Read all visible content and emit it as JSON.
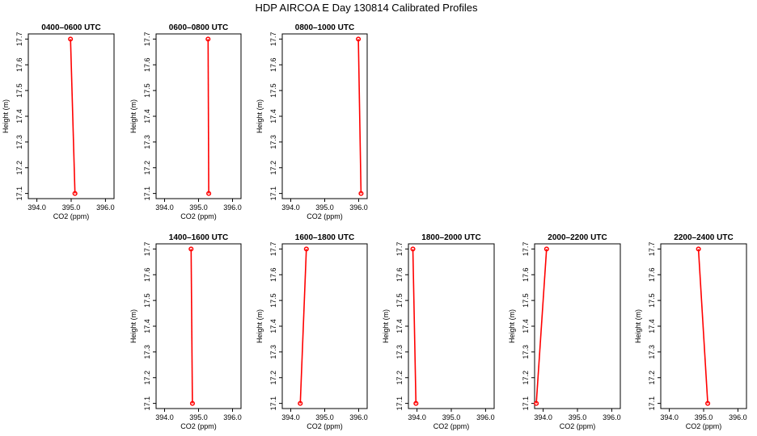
{
  "title": "HDP AIRCOA E  Day 130814  Calibrated Profiles",
  "chart_data": [
    {
      "type": "line",
      "title": "0400–0600 UTC",
      "xlabel": "CO2 (ppm)",
      "ylabel": "Height (m)",
      "xlim": [
        393.75,
        396.25
      ],
      "ylim": [
        17.08,
        17.72
      ],
      "xticks": [
        "394.0",
        "395.0",
        "396.0"
      ],
      "yticks": [
        "17.1",
        "17.2",
        "17.3",
        "17.4",
        "17.5",
        "17.6",
        "17.7"
      ],
      "x": [
        395.11,
        394.98
      ],
      "y": [
        17.1,
        17.7
      ]
    },
    {
      "type": "line",
      "title": "0600–0800 UTC",
      "xlabel": "CO2 (ppm)",
      "ylabel": "Height (m)",
      "xlim": [
        393.75,
        396.25
      ],
      "ylim": [
        17.08,
        17.72
      ],
      "xticks": [
        "394.0",
        "395.0",
        "396.0"
      ],
      "yticks": [
        "17.1",
        "17.2",
        "17.3",
        "17.4",
        "17.5",
        "17.6",
        "17.7"
      ],
      "x": [
        395.3,
        395.28
      ],
      "y": [
        17.1,
        17.7
      ]
    },
    {
      "type": "line",
      "title": "0800–1000 UTC",
      "xlabel": "CO2 (ppm)",
      "ylabel": "Height (m)",
      "xlim": [
        393.75,
        396.25
      ],
      "ylim": [
        17.08,
        17.72
      ],
      "xticks": [
        "394.0",
        "395.0",
        "396.0"
      ],
      "yticks": [
        "17.1",
        "17.2",
        "17.3",
        "17.4",
        "17.5",
        "17.6",
        "17.7"
      ],
      "x": [
        396.07,
        395.99
      ],
      "y": [
        17.1,
        17.7
      ]
    },
    {
      "type": "line",
      "title": "1400–1600 UTC",
      "xlabel": "CO2 (ppm)",
      "ylabel": "Height (m)",
      "xlim": [
        393.75,
        396.25
      ],
      "ylim": [
        17.08,
        17.72
      ],
      "xticks": [
        "394.0",
        "395.0",
        "396.0"
      ],
      "yticks": [
        "17.1",
        "17.2",
        "17.3",
        "17.4",
        "17.5",
        "17.6",
        "17.7"
      ],
      "x": [
        394.82,
        394.78
      ],
      "y": [
        17.1,
        17.7
      ]
    },
    {
      "type": "line",
      "title": "1600–1800 UTC",
      "xlabel": "CO2 (ppm)",
      "ylabel": "Height (m)",
      "xlim": [
        393.75,
        396.25
      ],
      "ylim": [
        17.08,
        17.72
      ],
      "xticks": [
        "394.0",
        "395.0",
        "396.0"
      ],
      "yticks": [
        "17.1",
        "17.2",
        "17.3",
        "17.4",
        "17.5",
        "17.6",
        "17.7"
      ],
      "x": [
        394.28,
        394.46
      ],
      "y": [
        17.1,
        17.7
      ]
    },
    {
      "type": "line",
      "title": "1800–2000 UTC",
      "xlabel": "CO2 (ppm)",
      "ylabel": "Height (m)",
      "xlim": [
        393.75,
        396.25
      ],
      "ylim": [
        17.08,
        17.72
      ],
      "xticks": [
        "394.0",
        "395.0",
        "396.0"
      ],
      "yticks": [
        "17.1",
        "17.2",
        "17.3",
        "17.4",
        "17.5",
        "17.6",
        "17.7"
      ],
      "x": [
        393.97,
        393.88
      ],
      "y": [
        17.1,
        17.7
      ]
    },
    {
      "type": "line",
      "title": "2000–2200 UTC",
      "xlabel": "CO2 (ppm)",
      "ylabel": "Height (m)",
      "xlim": [
        393.75,
        396.25
      ],
      "ylim": [
        17.08,
        17.72
      ],
      "xticks": [
        "394.0",
        "395.0",
        "396.0"
      ],
      "yticks": [
        "17.1",
        "17.2",
        "17.3",
        "17.4",
        "17.5",
        "17.6",
        "17.7"
      ],
      "x": [
        393.8,
        394.1
      ],
      "y": [
        17.1,
        17.7
      ]
    },
    {
      "type": "line",
      "title": "2200–2400 UTC",
      "xlabel": "CO2 (ppm)",
      "ylabel": "Height (m)",
      "xlim": [
        393.75,
        396.25
      ],
      "ylim": [
        17.08,
        17.72
      ],
      "xticks": [
        "394.0",
        "395.0",
        "396.0"
      ],
      "yticks": [
        "17.1",
        "17.2",
        "17.3",
        "17.4",
        "17.5",
        "17.6",
        "17.7"
      ],
      "x": [
        395.12,
        394.85
      ],
      "y": [
        17.1,
        17.7
      ]
    }
  ],
  "colors": {
    "series": "#ff0000",
    "axes": "#000000",
    "background": "#ffffff"
  }
}
